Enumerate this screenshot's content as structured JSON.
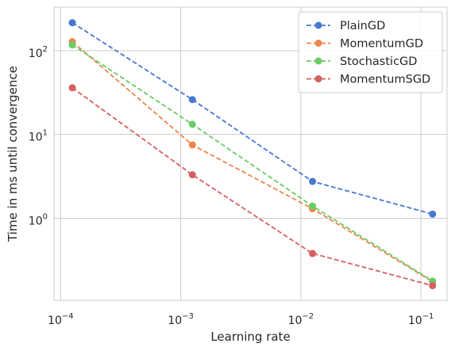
{
  "chart_data": {
    "type": "line",
    "title": "",
    "xlabel": "Learning rate",
    "ylabel": "Time in ms until convergence",
    "xscale": "log",
    "yscale": "log",
    "xlim": [
      8.8e-05,
      0.165
    ],
    "ylim": [
      0.105,
      330
    ],
    "grid": true,
    "legend_position": "top-right",
    "x_ticks": [
      {
        "value": 0.0001,
        "base": "10",
        "exp": "−4"
      },
      {
        "value": 0.001,
        "base": "10",
        "exp": "−3"
      },
      {
        "value": 0.01,
        "base": "10",
        "exp": "−2"
      },
      {
        "value": 0.1,
        "base": "10",
        "exp": "−1"
      }
    ],
    "y_ticks": [
      {
        "value": 1,
        "base": "10",
        "exp": "0"
      },
      {
        "value": 10,
        "base": "10",
        "exp": "1"
      },
      {
        "value": 100,
        "base": "10",
        "exp": "2"
      }
    ],
    "x": [
      0.000125,
      0.00125,
      0.0125,
      0.125
    ],
    "series": [
      {
        "name": "PlainGD",
        "color": "#4878d0",
        "values": [
          215,
          26,
          2.75,
          1.12
        ]
      },
      {
        "name": "MomentumGD",
        "color": "#ee854a",
        "values": [
          128,
          7.5,
          1.3,
          0.175
        ]
      },
      {
        "name": "StochasticGD",
        "color": "#6acc64",
        "values": [
          117,
          13.2,
          1.4,
          0.178
        ]
      },
      {
        "name": "MomentumSGD",
        "color": "#d65f5f",
        "values": [
          36,
          3.3,
          0.38,
          0.157
        ]
      }
    ]
  }
}
